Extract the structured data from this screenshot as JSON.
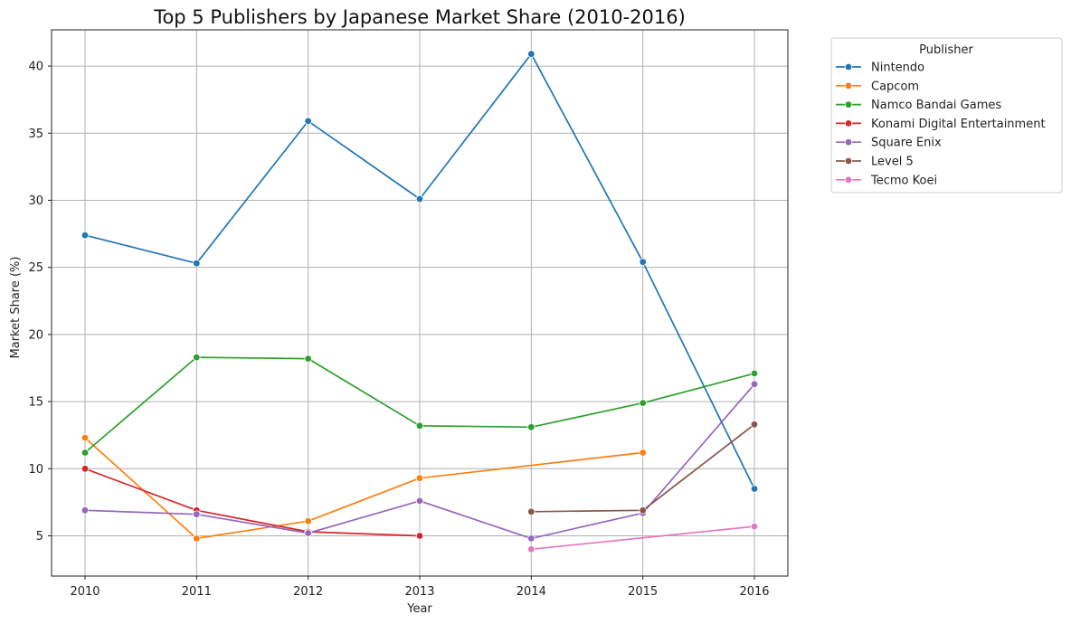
{
  "chart_data": {
    "type": "line",
    "title": "Top 5 Publishers by Japanese Market Share (2010-2016)",
    "xlabel": "Year",
    "ylabel": "Market Share (%)",
    "x_ticks": [
      2010,
      2011,
      2012,
      2013,
      2014,
      2015,
      2016
    ],
    "y_ticks": [
      5,
      10,
      15,
      20,
      25,
      30,
      35,
      40
    ],
    "xlim": [
      2009.7,
      2016.3
    ],
    "ylim": [
      2.0,
      42.7
    ],
    "grid": true,
    "marker": "circle",
    "legend": {
      "title": "Publisher",
      "placement": "outside-top-right"
    },
    "series": [
      {
        "name": "Nintendo",
        "color": "#1f77b4",
        "points": [
          [
            2010,
            27.4
          ],
          [
            2011,
            25.3
          ],
          [
            2012,
            35.9
          ],
          [
            2013,
            30.1
          ],
          [
            2014,
            40.9
          ],
          [
            2015,
            25.4
          ],
          [
            2016,
            8.5
          ]
        ]
      },
      {
        "name": "Capcom",
        "color": "#ff7f0e",
        "points": [
          [
            2010,
            12.3
          ],
          [
            2011,
            4.8
          ],
          [
            2012,
            6.1
          ],
          [
            2013,
            9.3
          ],
          [
            2015,
            11.2
          ]
        ]
      },
      {
        "name": "Namco Bandai Games",
        "color": "#2ca02c",
        "points": [
          [
            2010,
            11.2
          ],
          [
            2011,
            18.3
          ],
          [
            2012,
            18.2
          ],
          [
            2013,
            13.2
          ],
          [
            2014,
            13.1
          ],
          [
            2015,
            14.9
          ],
          [
            2016,
            17.1
          ]
        ]
      },
      {
        "name": "Konami Digital Entertainment",
        "color": "#d62728",
        "points": [
          [
            2010,
            10.0
          ],
          [
            2011,
            6.9
          ],
          [
            2012,
            5.3
          ],
          [
            2013,
            5.0
          ]
        ]
      },
      {
        "name": "Square Enix",
        "color": "#9467bd",
        "points": [
          [
            2010,
            6.9
          ],
          [
            2011,
            6.6
          ],
          [
            2012,
            5.2
          ],
          [
            2013,
            7.6
          ],
          [
            2014,
            4.8
          ],
          [
            2015,
            6.7
          ],
          [
            2016,
            16.3
          ]
        ]
      },
      {
        "name": "Level 5",
        "color": "#8c564b",
        "points": [
          [
            2014,
            6.8
          ],
          [
            2015,
            6.9
          ],
          [
            2016,
            13.3
          ]
        ]
      },
      {
        "name": "Tecmo Koei",
        "color": "#e377c2",
        "points": [
          [
            2014,
            4.0
          ],
          [
            2016,
            5.7
          ]
        ]
      }
    ]
  }
}
